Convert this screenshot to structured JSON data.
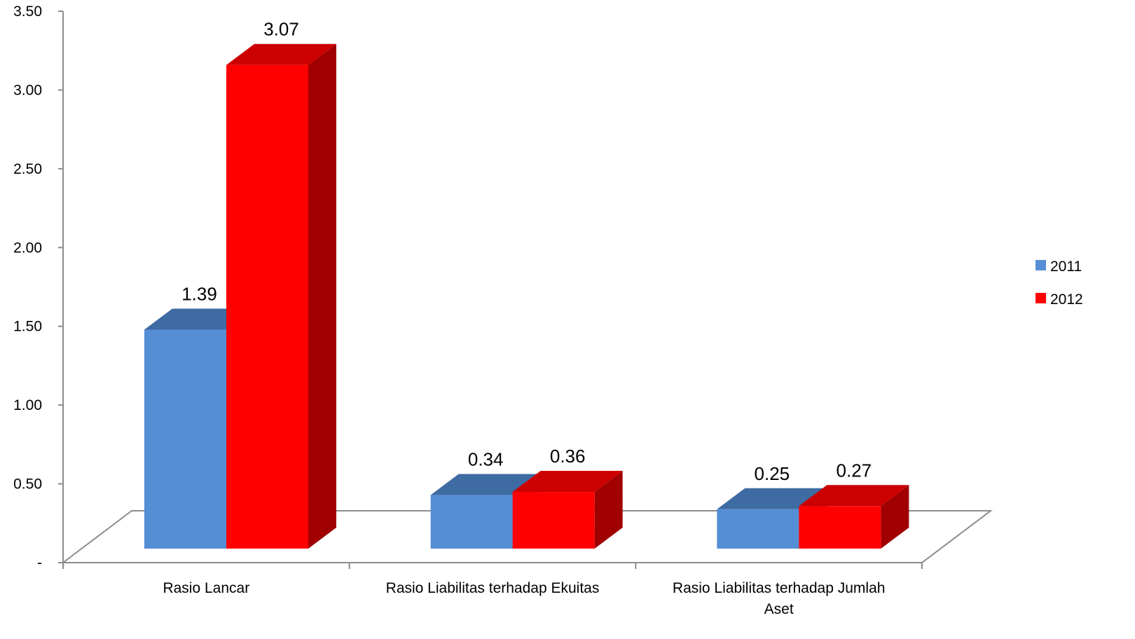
{
  "chart_data": {
    "type": "bar",
    "categories": [
      "Rasio Lancar",
      "Rasio Liabilitas terhadap Ekuitas",
      "Rasio Liabilitas terhadap Jumlah Aset"
    ],
    "category_lines": [
      [
        "Rasio Lancar"
      ],
      [
        "Rasio Liabilitas terhadap Ekuitas"
      ],
      [
        "Rasio Liabilitas terhadap Jumlah",
        "Aset"
      ]
    ],
    "series": [
      {
        "name": "2011",
        "values": [
          1.39,
          0.34,
          0.25
        ],
        "labels": [
          "1.39",
          "0.34",
          "0.25"
        ],
        "color": "#558ED5",
        "top_color": "#3F6BA3",
        "side_color": "#2E4F7A"
      },
      {
        "name": "2012",
        "values": [
          3.07,
          0.36,
          0.27
        ],
        "labels": [
          "3.07",
          "0.36",
          "0.27"
        ],
        "color": "#FF0000",
        "top_color": "#CC0000",
        "side_color": "#A00000"
      }
    ],
    "yticks": [
      0,
      0.5,
      1.0,
      1.5,
      2.0,
      2.5,
      3.0,
      3.5
    ],
    "ytick_labels": [
      "-",
      "0.50",
      "1.00",
      "1.50",
      "2.00",
      "2.50",
      "3.00",
      "3.50"
    ],
    "ylim": [
      0,
      3.5
    ],
    "title": "",
    "xlabel": "",
    "ylabel": "",
    "legend_position": "right",
    "three_d": true
  }
}
